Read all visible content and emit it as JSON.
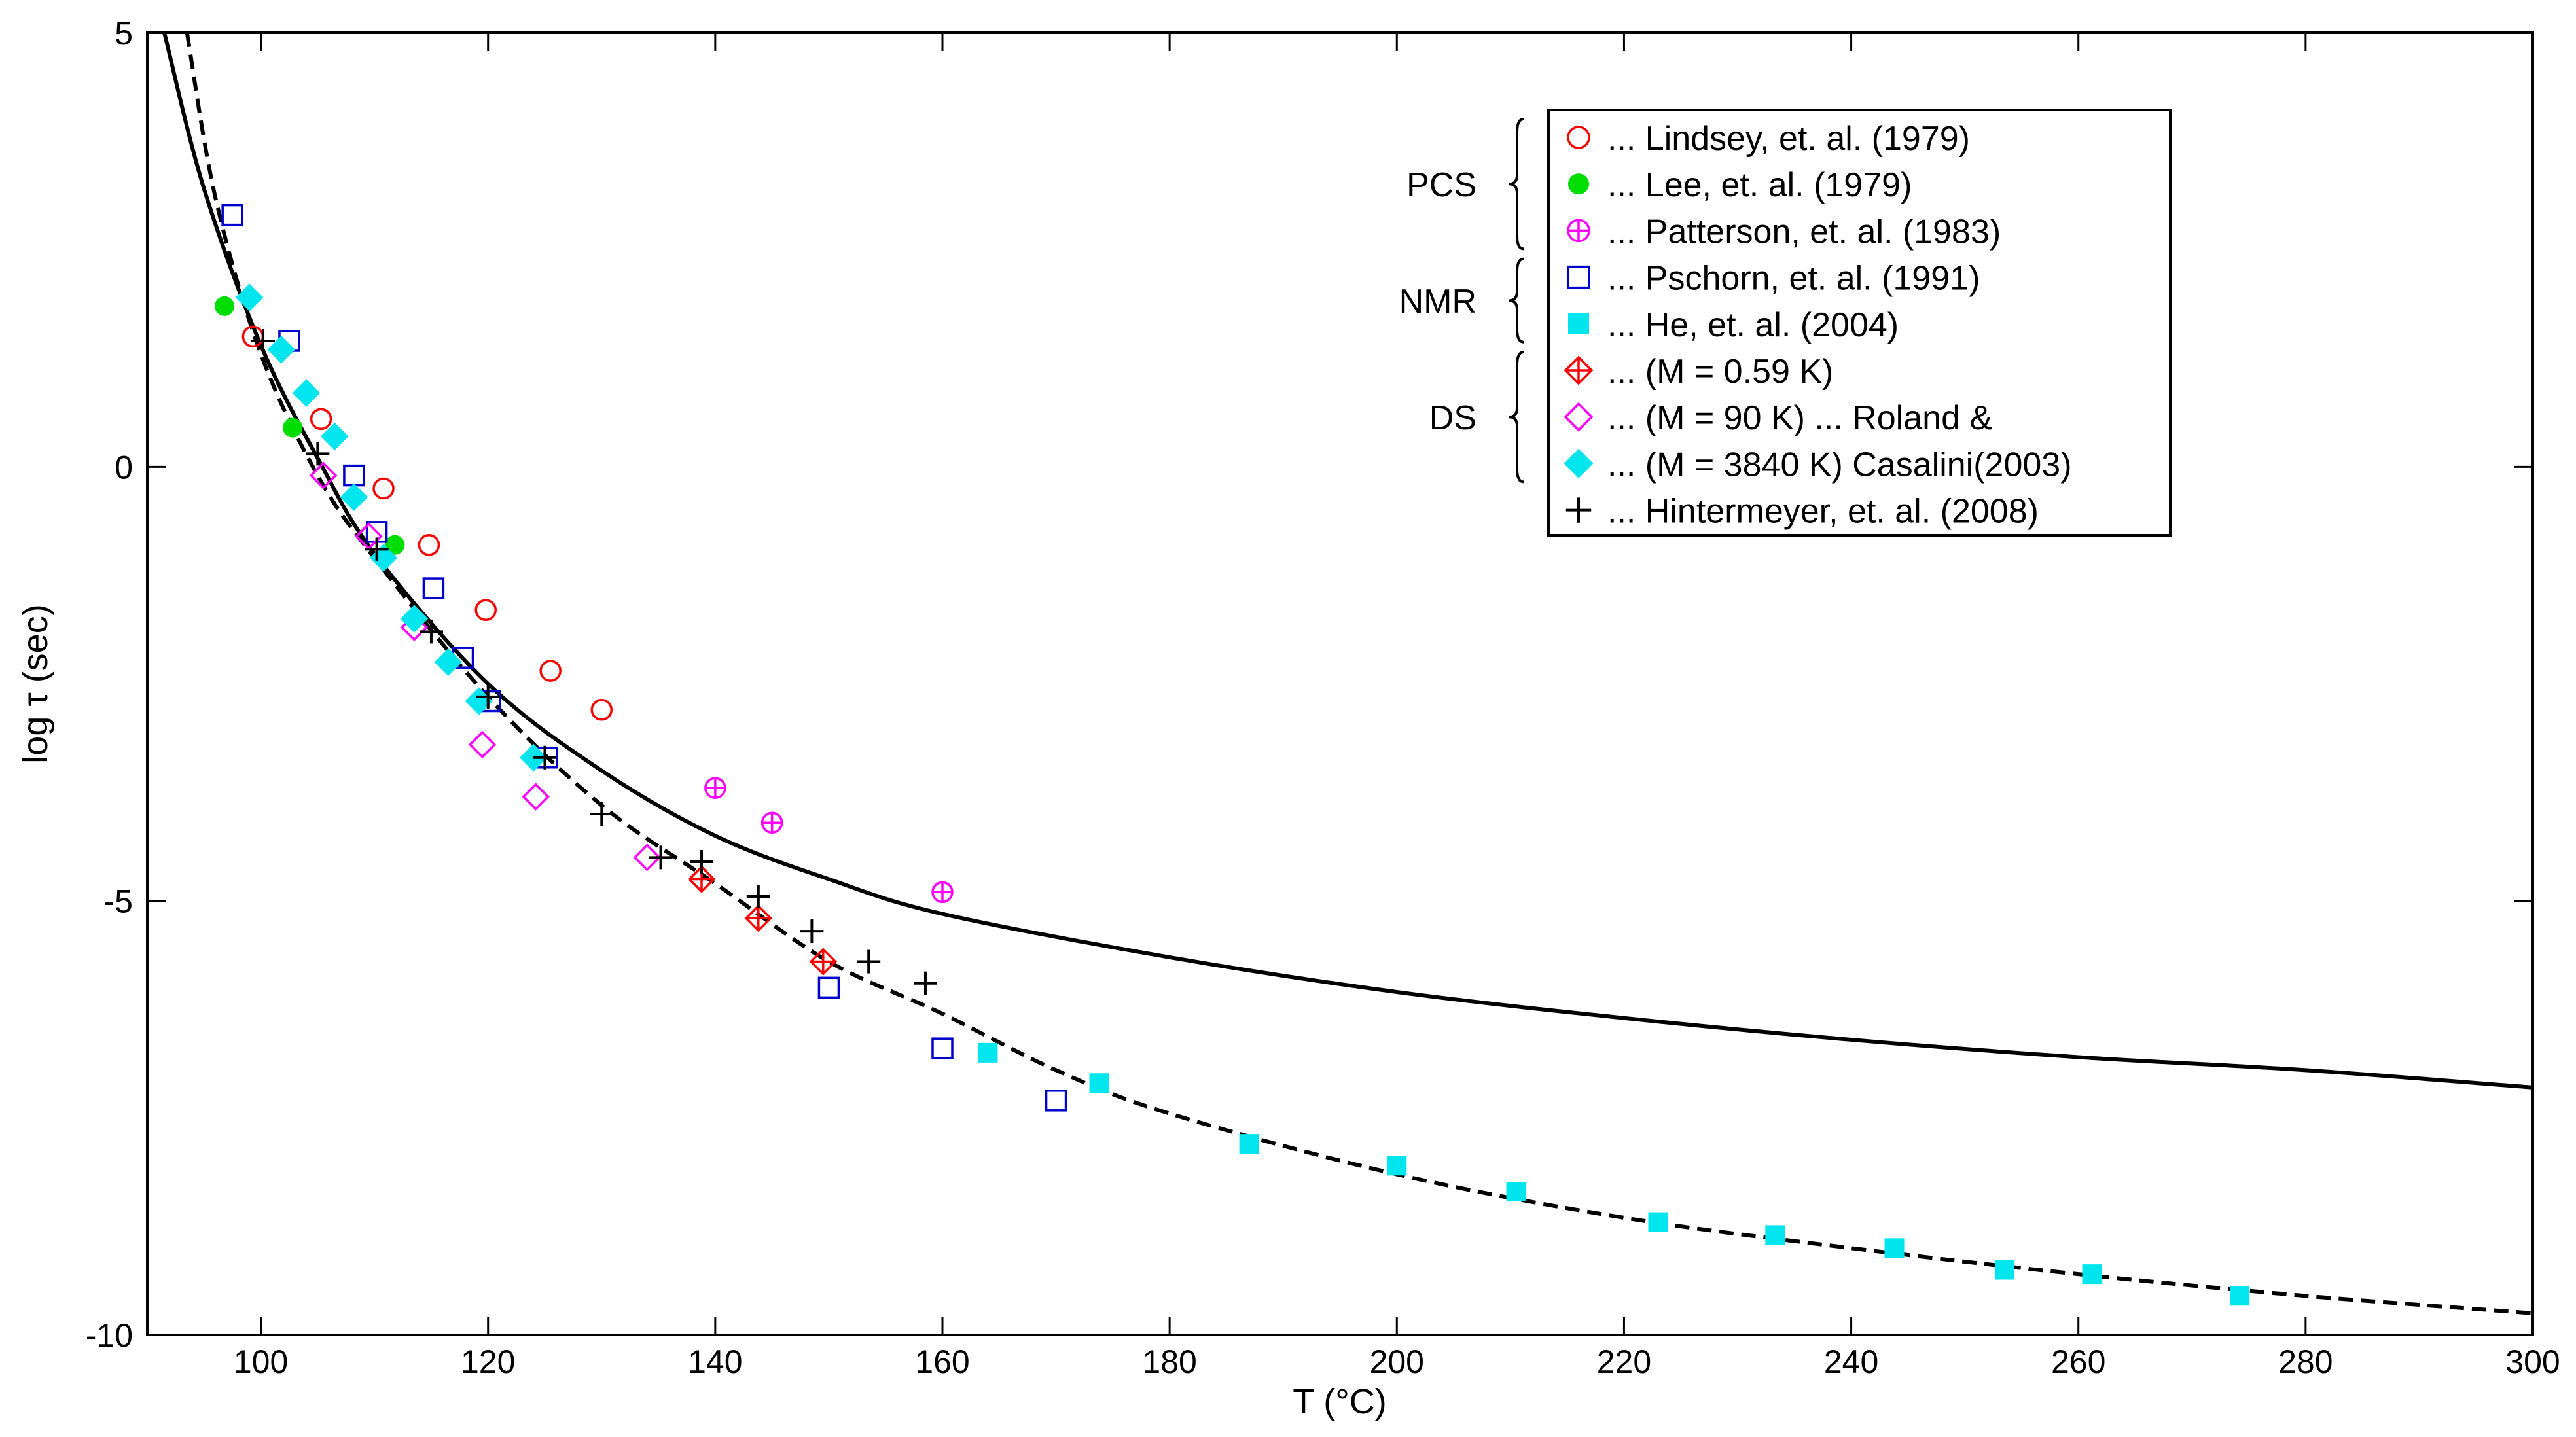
{
  "chart_data": {
    "type": "scatter",
    "title": "",
    "xlabel": "T (°C)",
    "ylabel": "log τ (sec)",
    "xlim": [
      90,
      300
    ],
    "ylim": [
      -10,
      5
    ],
    "x_ticks": [
      100,
      120,
      140,
      160,
      180,
      200,
      220,
      240,
      260,
      280,
      300
    ],
    "y_ticks": [
      5,
      0,
      -5,
      -10
    ],
    "legend": {
      "position": "top-right",
      "groups": [
        {
          "label": "PCS",
          "series": [
            0,
            1,
            2
          ]
        },
        {
          "label": "NMR",
          "series": [
            3,
            4
          ]
        },
        {
          "label": "DS",
          "series": [
            5,
            6,
            7
          ]
        }
      ]
    },
    "lines": [
      {
        "name": "solid-fit",
        "style": "solid",
        "color": "#000000",
        "x": [
          91.5,
          95,
          100,
          105,
          110,
          120,
          130,
          140,
          150,
          160,
          180,
          200,
          220,
          240,
          260,
          280,
          300
        ],
        "y": [
          5.0,
          3.2,
          1.4,
          0.1,
          -1.0,
          -2.5,
          -3.5,
          -4.25,
          -4.75,
          -5.15,
          -5.65,
          -6.05,
          -6.35,
          -6.6,
          -6.8,
          -6.95,
          -7.15
        ]
      },
      {
        "name": "dashed-fit",
        "style": "dashed",
        "color": "#000000",
        "x": [
          93.5,
          96,
          100,
          105,
          110,
          120,
          130,
          140,
          150,
          160,
          170,
          180,
          200,
          220,
          240,
          260,
          280,
          300
        ],
        "y": [
          5.0,
          3.1,
          1.3,
          -0.1,
          -1.05,
          -2.65,
          -3.9,
          -4.8,
          -5.7,
          -6.3,
          -6.95,
          -7.45,
          -8.15,
          -8.65,
          -9.0,
          -9.3,
          -9.55,
          -9.75
        ]
      }
    ],
    "series": [
      {
        "name": "... Lindsey, et. al. (1979)",
        "marker": "circle-open",
        "color": "#ff0000",
        "x": [
          99.3,
          105.3,
          110.8,
          114.8,
          119.8,
          125.5,
          130.0
        ],
        "y": [
          1.5,
          0.55,
          -0.25,
          -0.9,
          -1.65,
          -2.35,
          -2.8
        ]
      },
      {
        "name": "... Lee, et. al. (1979)",
        "marker": "circle-filled",
        "color": "#00dd00",
        "x": [
          96.8,
          102.8,
          111.8
        ],
        "y": [
          1.85,
          0.45,
          -0.9
        ]
      },
      {
        "name": "... Patterson, et. al. (1983)",
        "marker": "circle-plus",
        "color": "#ff00ff",
        "x": [
          140.0,
          145.0,
          160.0
        ],
        "y": [
          -3.7,
          -4.1,
          -4.9
        ]
      },
      {
        "name": "... Pschorn, et. al. (1991)",
        "marker": "square-open",
        "color": "#0000cc",
        "x": [
          97.5,
          102.5,
          108.2,
          110.2,
          115.2,
          117.8,
          120.2,
          125.2,
          150.0,
          160.0,
          170.0
        ],
        "y": [
          2.9,
          1.45,
          -0.1,
          -0.75,
          -1.4,
          -2.2,
          -2.7,
          -3.35,
          -6.0,
          -6.7,
          -7.3
        ]
      },
      {
        "name": "... He, et. al. (2004)",
        "marker": "square-filled",
        "color": "#00e5ee",
        "x": [
          164.0,
          173.8,
          187.0,
          200.0,
          210.5,
          223.0,
          233.3,
          243.8,
          253.5,
          261.2,
          274.2
        ],
        "y": [
          -6.75,
          -7.1,
          -7.8,
          -8.05,
          -8.35,
          -8.7,
          -8.85,
          -9.0,
          -9.25,
          -9.3,
          -9.55
        ]
      },
      {
        "name": "... (M   = 0.59 K)",
        "marker": "diamond-plus",
        "color": "#ff0000",
        "x": [
          138.8,
          143.8,
          149.5
        ],
        "y": [
          -4.75,
          -5.2,
          -5.7
        ]
      },
      {
        "name": "... (M   = 90 K) ... Roland &",
        "marker": "diamond-open",
        "color": "#ff00ff",
        "x": [
          105.5,
          109.5,
          113.5,
          119.5,
          124.2,
          134.0
        ],
        "y": [
          -0.1,
          -0.8,
          -1.85,
          -3.2,
          -3.8,
          -4.5
        ]
      },
      {
        "name": "... (M   = 3840 K) Casalini(2003)",
        "marker": "diamond-filled",
        "color": "#00e5ee",
        "x": [
          99.0,
          101.8,
          104.0,
          106.5,
          108.2,
          110.8,
          113.5,
          116.5,
          119.2,
          124.0
        ],
        "y": [
          1.95,
          1.35,
          0.85,
          0.35,
          -0.35,
          -1.05,
          -1.75,
          -2.25,
          -2.7,
          -3.35
        ]
      },
      {
        "name": "... Hintermeyer, et. al. (2008)",
        "marker": "plus",
        "color": "#000000",
        "x": [
          100.2,
          105.0,
          110.2,
          115.0,
          120.0,
          125.0,
          130.0,
          135.2,
          138.8,
          143.8,
          148.5,
          153.5,
          158.5
        ],
        "y": [
          1.45,
          0.15,
          -0.95,
          -1.9,
          -2.65,
          -3.35,
          -4.0,
          -4.5,
          -4.55,
          -4.95,
          -5.35,
          -5.7,
          -5.95
        ]
      }
    ]
  }
}
